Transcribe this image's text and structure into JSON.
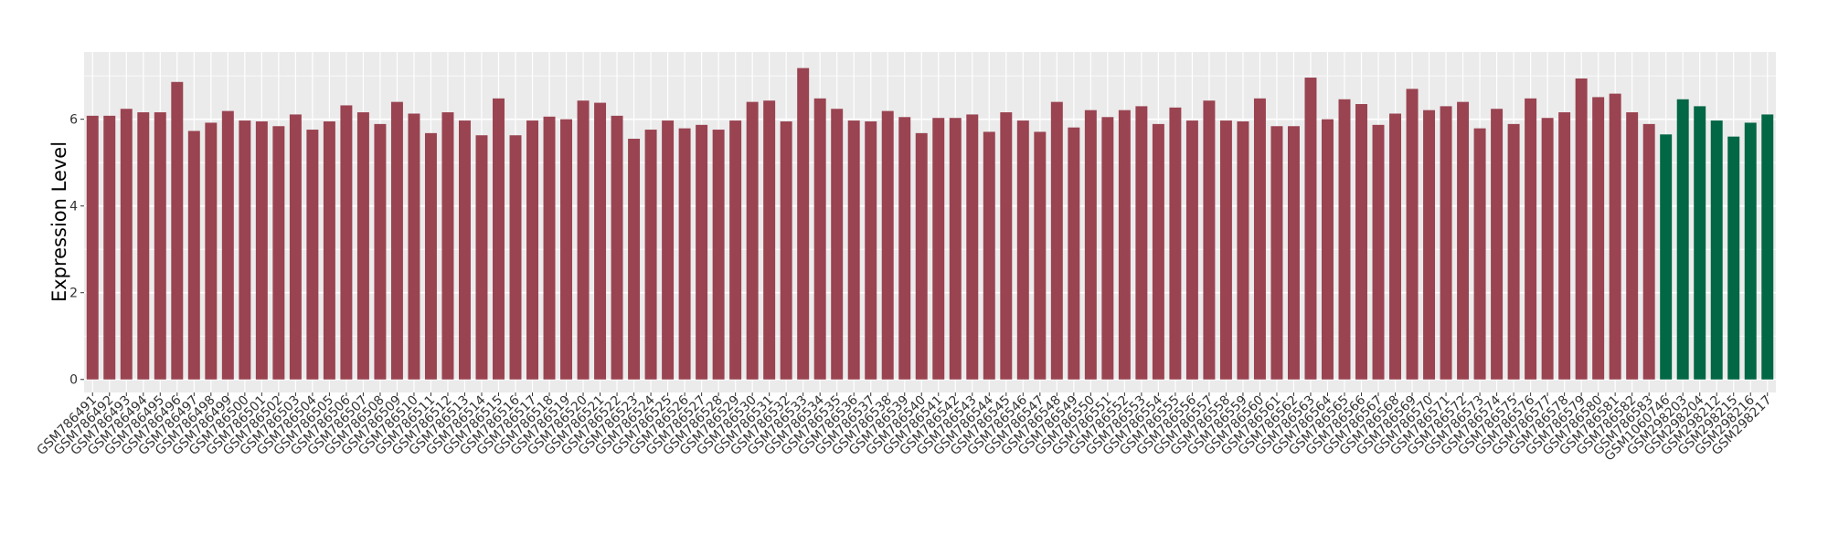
{
  "chart_data": {
    "type": "bar",
    "title": "",
    "xlabel": "",
    "ylabel": "Expression Level",
    "ylim": [
      -0.3,
      7.55
    ],
    "yticks": [
      0,
      2,
      4,
      6
    ],
    "grid": true,
    "legend": "none",
    "colors": {
      "group1": "#9A4351",
      "group2": "#016745",
      "panel": "#EBEBEB",
      "grid": "#FFFFFF"
    },
    "categories": [
      "GSM786491",
      "GSM786492",
      "GSM786493",
      "GSM786494",
      "GSM786495",
      "GSM786496",
      "GSM786497",
      "GSM786498",
      "GSM786499",
      "GSM786500",
      "GSM786501",
      "GSM786502",
      "GSM786503",
      "GSM786504",
      "GSM786505",
      "GSM786506",
      "GSM786507",
      "GSM786508",
      "GSM786509",
      "GSM786510",
      "GSM786511",
      "GSM786512",
      "GSM786513",
      "GSM786514",
      "GSM786515",
      "GSM786516",
      "GSM786517",
      "GSM786518",
      "GSM786519",
      "GSM786520",
      "GSM786521",
      "GSM786522",
      "GSM786523",
      "GSM786524",
      "GSM786525",
      "GSM786526",
      "GSM786527",
      "GSM786528",
      "GSM786529",
      "GSM786530",
      "GSM786531",
      "GSM786532",
      "GSM786533",
      "GSM786534",
      "GSM786535",
      "GSM786536",
      "GSM786537",
      "GSM786538",
      "GSM786539",
      "GSM786540",
      "GSM786541",
      "GSM786542",
      "GSM786543",
      "GSM786544",
      "GSM786545",
      "GSM786546",
      "GSM786547",
      "GSM786548",
      "GSM786549",
      "GSM786550",
      "GSM786551",
      "GSM786552",
      "GSM786553",
      "GSM786554",
      "GSM786555",
      "GSM786556",
      "GSM786557",
      "GSM786558",
      "GSM786559",
      "GSM786560",
      "GSM786561",
      "GSM786562",
      "GSM786563",
      "GSM786564",
      "GSM786565",
      "GSM786566",
      "GSM786567",
      "GSM786568",
      "GSM786569",
      "GSM786570",
      "GSM786571",
      "GSM786572",
      "GSM786573",
      "GSM786574",
      "GSM786575",
      "GSM786576",
      "GSM786577",
      "GSM786578",
      "GSM786579",
      "GSM786580",
      "GSM786581",
      "GSM786582",
      "GSM786583",
      "GSM1060746",
      "GSM298203",
      "GSM298204",
      "GSM298212",
      "GSM298215",
      "GSM298216",
      "GSM298217"
    ],
    "values": [
      6.08,
      6.08,
      6.24,
      6.16,
      6.16,
      6.86,
      5.73,
      5.92,
      6.19,
      5.97,
      5.95,
      5.84,
      6.11,
      5.76,
      5.95,
      6.32,
      6.16,
      5.89,
      6.4,
      6.13,
      5.68,
      6.16,
      5.97,
      5.63,
      6.48,
      5.63,
      5.97,
      6.06,
      6.0,
      6.43,
      6.38,
      6.08,
      5.55,
      5.76,
      5.97,
      5.79,
      5.87,
      5.76,
      5.97,
      6.4,
      6.43,
      5.95,
      7.18,
      6.48,
      6.24,
      5.97,
      5.95,
      6.19,
      6.05,
      5.68,
      6.03,
      6.03,
      6.11,
      5.71,
      6.16,
      5.97,
      5.71,
      6.4,
      5.81,
      6.21,
      6.05,
      6.21,
      6.3,
      5.89,
      6.27,
      5.97,
      6.43,
      5.97,
      5.95,
      6.48,
      5.84,
      5.84,
      6.96,
      6.0,
      6.46,
      6.35,
      5.87,
      6.13,
      6.7,
      6.21,
      6.3,
      6.4,
      5.79,
      6.24,
      5.89,
      6.48,
      6.03,
      6.16,
      6.94,
      6.51,
      6.59,
      6.16,
      5.89,
      5.65,
      6.46,
      6.3,
      5.97,
      5.6,
      5.92,
      6.11
    ],
    "groups": [
      "group1",
      "group1",
      "group1",
      "group1",
      "group1",
      "group1",
      "group1",
      "group1",
      "group1",
      "group1",
      "group1",
      "group1",
      "group1",
      "group1",
      "group1",
      "group1",
      "group1",
      "group1",
      "group1",
      "group1",
      "group1",
      "group1",
      "group1",
      "group1",
      "group1",
      "group1",
      "group1",
      "group1",
      "group1",
      "group1",
      "group1",
      "group1",
      "group1",
      "group1",
      "group1",
      "group1",
      "group1",
      "group1",
      "group1",
      "group1",
      "group1",
      "group1",
      "group1",
      "group1",
      "group1",
      "group1",
      "group1",
      "group1",
      "group1",
      "group1",
      "group1",
      "group1",
      "group1",
      "group1",
      "group1",
      "group1",
      "group1",
      "group1",
      "group1",
      "group1",
      "group1",
      "group1",
      "group1",
      "group1",
      "group1",
      "group1",
      "group1",
      "group1",
      "group1",
      "group1",
      "group1",
      "group1",
      "group1",
      "group1",
      "group1",
      "group1",
      "group1",
      "group1",
      "group1",
      "group1",
      "group1",
      "group1",
      "group1",
      "group1",
      "group1",
      "group1",
      "group1",
      "group1",
      "group1",
      "group1",
      "group1",
      "group1",
      "group1",
      "group2",
      "group2",
      "group2",
      "group2",
      "group2",
      "group2",
      "group2"
    ]
  }
}
